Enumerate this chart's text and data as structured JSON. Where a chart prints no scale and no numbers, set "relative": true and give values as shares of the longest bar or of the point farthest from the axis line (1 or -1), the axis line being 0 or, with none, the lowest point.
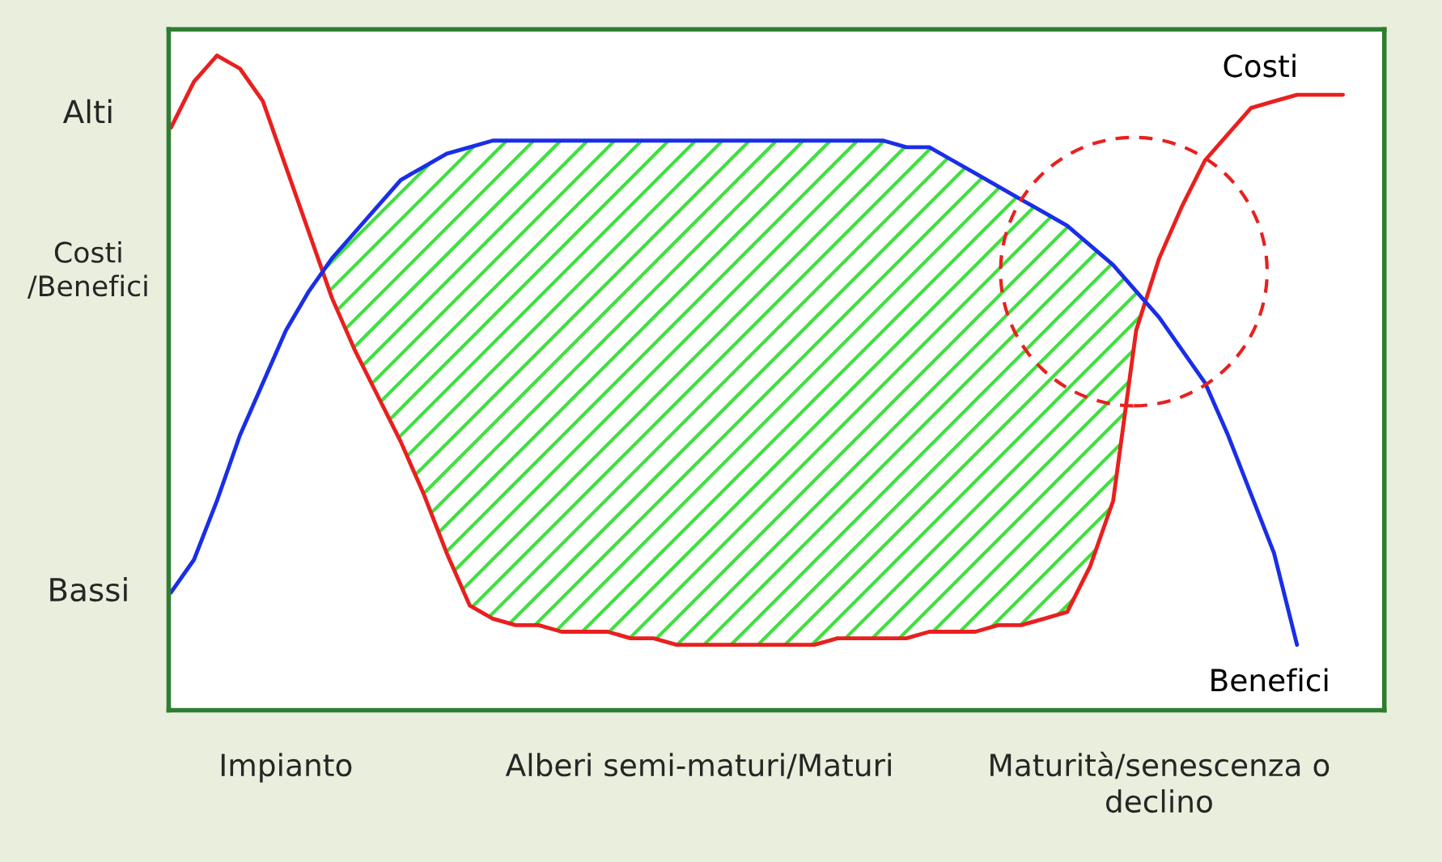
{
  "chart_data": {
    "type": "line",
    "relative": true,
    "ylabel": "Costi\n/Benefici",
    "categories": [
      null,
      null,
      null,
      null,
      null,
      "Impianto",
      null,
      null,
      null,
      null,
      null,
      null,
      null,
      null,
      null,
      null,
      null,
      null,
      null,
      null,
      null,
      null,
      null,
      "Alberi semi-maturi/Maturi",
      null,
      null,
      null,
      null,
      null,
      null,
      null,
      null,
      null,
      null,
      null,
      null,
      null,
      null,
      null,
      null,
      null,
      null,
      null,
      "Maturità/senescenza o\ndeclino",
      null,
      null,
      null,
      null,
      null,
      null,
      null,
      null
    ],
    "annotations": [
      "Alti",
      "Bassi"
    ],
    "grid": false,
    "legend": false,
    "marker": "none",
    "line_style": "solid",
    "series": [
      {
        "name": "Costi",
        "color": "#e8201f",
        "values": [
          0.89,
          0.96,
          1.0,
          0.98,
          0.93,
          0.83,
          0.73,
          0.63,
          0.55,
          0.48,
          0.41,
          0.33,
          0.24,
          0.16,
          0.14,
          0.13,
          0.13,
          0.12,
          0.12,
          0.12,
          0.11,
          0.11,
          0.1,
          0.1,
          0.1,
          0.1,
          0.1,
          0.1,
          0.1,
          0.11,
          0.11,
          0.11,
          0.11,
          0.12,
          0.12,
          0.12,
          0.13,
          0.13,
          0.14,
          0.15,
          0.22,
          0.32,
          0.58,
          0.69,
          0.77,
          0.84,
          0.88,
          0.92,
          0.93,
          0.94,
          0.94,
          0.94
        ]
      },
      {
        "name": "Benefici",
        "color": "#1a2ee8",
        "values": [
          0.18,
          0.23,
          0.32,
          0.42,
          0.5,
          0.58,
          0.64,
          0.69,
          0.73,
          0.77,
          0.81,
          0.83,
          0.85,
          0.86,
          0.87,
          0.87,
          0.87,
          0.87,
          0.87,
          0.87,
          0.87,
          0.87,
          0.87,
          0.87,
          0.87,
          0.87,
          0.87,
          0.87,
          0.87,
          0.87,
          0.87,
          0.87,
          0.86,
          0.86,
          0.84,
          0.82,
          0.8,
          0.78,
          0.76,
          0.74,
          0.71,
          0.68,
          0.64,
          0.6,
          0.55,
          0.5,
          0.42,
          0.33,
          0.24,
          0.1,
          null,
          null
        ]
      }
    ]
  }
}
